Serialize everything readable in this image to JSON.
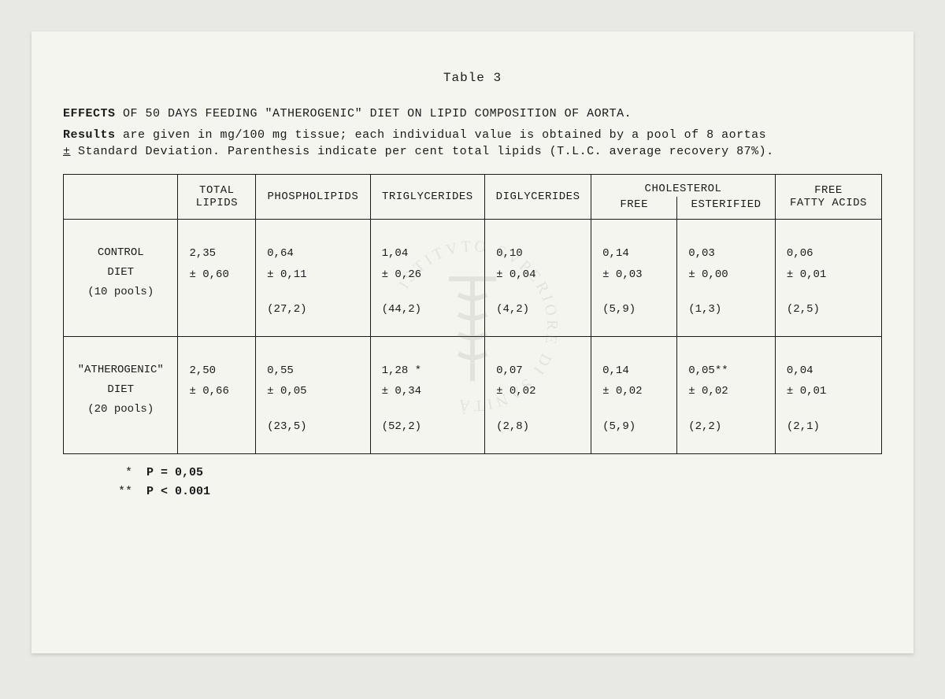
{
  "table_label": "Table 3",
  "title_bold": "EFFECTS",
  "title_rest": " OF 50 DAYS FEEDING \"ATHEROGENIC\" DIET ON LIPID COMPOSITION OF AORTA.",
  "subtitle_bold1": "Results",
  "subtitle_mid1": " are given in mg/100 mg tissue; each individual value is obtained by a pool of 8 aortas",
  "subtitle_pm": "±",
  "subtitle_rest": "Standard Deviation. Parenthesis indicate per cent total lipids (T.L.C. average recovery 87%).",
  "headers": {
    "blank": "",
    "total_lipids_l1": "TOTAL",
    "total_lipids_l2": "LIPIDS",
    "phospholipids": "PHOSPHOLIPIDS",
    "triglycerides": "TRIGLYCERIDES",
    "diglycerides": "DIGLYCERIDES",
    "cholesterol": "CHOLESTEROL",
    "chol_free": "FREE",
    "chol_est": "ESTERIFIED",
    "ffa_l1": "FREE",
    "ffa_l2": "FATTY ACIDS"
  },
  "rows": [
    {
      "label_l1": "CONTROL",
      "label_l2": "DIET",
      "label_l3": "(10 pools)",
      "cells": [
        {
          "val": "2,35",
          "sd": "± 0,60",
          "pct": ""
        },
        {
          "val": "0,64",
          "sd": "± 0,11",
          "pct": "(27,2)"
        },
        {
          "val": "1,04",
          "sd": "± 0,26",
          "pct": "(44,2)"
        },
        {
          "val": "0,10",
          "sd": "± 0,04",
          "pct": "(4,2)"
        },
        {
          "val": "0,14",
          "sd": "± 0,03",
          "pct": "(5,9)"
        },
        {
          "val": "0,03",
          "sd": "± 0,00",
          "pct": "(1,3)"
        },
        {
          "val": "0,06",
          "sd": "± 0,01",
          "pct": "(2,5)"
        }
      ]
    },
    {
      "label_l1": "\"ATHEROGENIC\"",
      "label_l2": "DIET",
      "label_l3": "(20 pools)",
      "cells": [
        {
          "val": "2,50",
          "sd": "± 0,66",
          "pct": ""
        },
        {
          "val": "0,55",
          "sd": "± 0,05",
          "pct": "(23,5)"
        },
        {
          "val": "1,28 *",
          "sd": "± 0,34",
          "pct": "(52,2)"
        },
        {
          "val": "0,07",
          "sd": "± 0,02",
          "pct": "(2,8)"
        },
        {
          "val": "0,14",
          "sd": "± 0,02",
          "pct": "(5,9)"
        },
        {
          "val": "0,05**",
          "sd": "± 0,02",
          "pct": "(2,2)"
        },
        {
          "val": "0,04",
          "sd": "± 0,01",
          "pct": "(2,1)"
        }
      ]
    }
  ],
  "footnote1_sym": "*",
  "footnote1_txt": "P = 0,05",
  "footnote2_sym": "**",
  "footnote2_txt": "P < 0.001",
  "colors": {
    "page_bg": "#f5f5f0",
    "body_bg": "#e8e8e4",
    "ink": "#1a1a1a",
    "watermark": "#808080"
  },
  "watermark_text": "ISTITUTO SUPERIORE DI SANITÀ"
}
